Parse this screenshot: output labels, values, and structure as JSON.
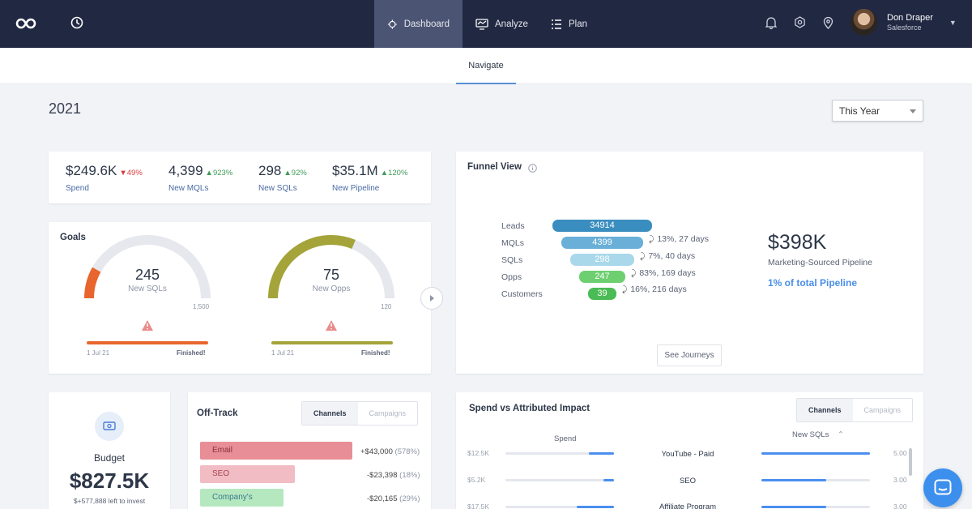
{
  "nav": {
    "tabs": [
      {
        "label": "Dashboard",
        "icon": "dashboard-icon",
        "active": true
      },
      {
        "label": "Analyze",
        "icon": "analyze-icon"
      },
      {
        "label": "Plan",
        "icon": "plan-icon"
      }
    ],
    "icons": [
      "logo-icon",
      "history-icon",
      "bell-icon",
      "gear-icon",
      "location-pin-icon"
    ],
    "user": {
      "name": "Don Draper",
      "org": "Salesforce"
    }
  },
  "subnav": {
    "tab": "Navigate"
  },
  "header": {
    "year": "2021",
    "period": "This Year"
  },
  "kpis": [
    {
      "value": "$249.6K",
      "delta": "49%",
      "direction": "down",
      "label": "Spend"
    },
    {
      "value": "4,399",
      "delta": "923%",
      "direction": "up",
      "label": "New MQLs"
    },
    {
      "value": "298",
      "delta": "92%",
      "direction": "up",
      "label": "New SQLs"
    },
    {
      "value": "$35.1M",
      "delta": "120%",
      "direction": "up",
      "label": "New Pipeline"
    }
  ],
  "goals": {
    "title": "Goals",
    "items": [
      {
        "value": "245",
        "label": "New SQLs",
        "max": "1,500",
        "progress": 0.163,
        "color": "#e8662d",
        "start": "1 Jul 21",
        "status": "Finished!"
      },
      {
        "value": "75",
        "label": "New Opps",
        "max": "120",
        "progress": 0.625,
        "color": "#a4a43a",
        "start": "1 Jul 21",
        "status": "Finished!"
      }
    ]
  },
  "funnel": {
    "title": "Funnel View",
    "stages": [
      {
        "label": "Leads",
        "value": "34914",
        "color": "#3a8dbf"
      },
      {
        "label": "MQLs",
        "value": "4399",
        "color": "#69afd8"
      },
      {
        "label": "SQLs",
        "value": "298",
        "color": "#a9d8ea"
      },
      {
        "label": "Opps",
        "value": "247",
        "color": "#6ecf70"
      },
      {
        "label": "Customers",
        "value": "39",
        "color": "#4bbb55"
      }
    ],
    "conversions": [
      "13%, 27 days",
      "7%, 40 days",
      "83%, 169 days",
      "16%, 216 days"
    ],
    "pipeline_value": "$398K",
    "pipeline_label": "Marketing-Sourced Pipeline",
    "pipeline_share": "1% of total Pipeline",
    "button": "See Journeys"
  },
  "budget": {
    "title": "Budget",
    "value": "$827.5K",
    "note": "$+577,888 left to invest"
  },
  "offtrack": {
    "title": "Off-Track",
    "toggle": [
      "Channels",
      "Campaigns"
    ],
    "rows": [
      {
        "name": "Email",
        "value": "+$43,000",
        "pct": "(578%)",
        "bg": "#e88e96",
        "fg": "#8b2f3c"
      },
      {
        "name": "SEO",
        "value": "-$23,398",
        "pct": "(18%)",
        "bg": "#f1bcc3",
        "fg": "#a8424f"
      },
      {
        "name": "Company's Website",
        "value": "-$20,165",
        "pct": "(29%)",
        "bg": "#b6e8c0",
        "fg": "#3c7a8f"
      }
    ]
  },
  "spend_vs_impact": {
    "title": "Spend vs Attributed Impact",
    "toggle": [
      "Channels",
      "Campaigns"
    ],
    "spend_header": "Spend",
    "metric_header": "New SQLs",
    "rows": [
      {
        "spend": "$12.5K",
        "spend_level": 0.24,
        "channel": "YouTube - Paid",
        "metric": "5.00",
        "metric_level": 1.0
      },
      {
        "spend": "$5.2K",
        "spend_level": 0.1,
        "channel": "SEO",
        "metric": "3.00",
        "metric_level": 0.6
      },
      {
        "spend": "$17.5K",
        "spend_level": 0.34,
        "channel": "Affiliate Program",
        "metric": "3.00",
        "metric_level": 0.6
      }
    ]
  }
}
